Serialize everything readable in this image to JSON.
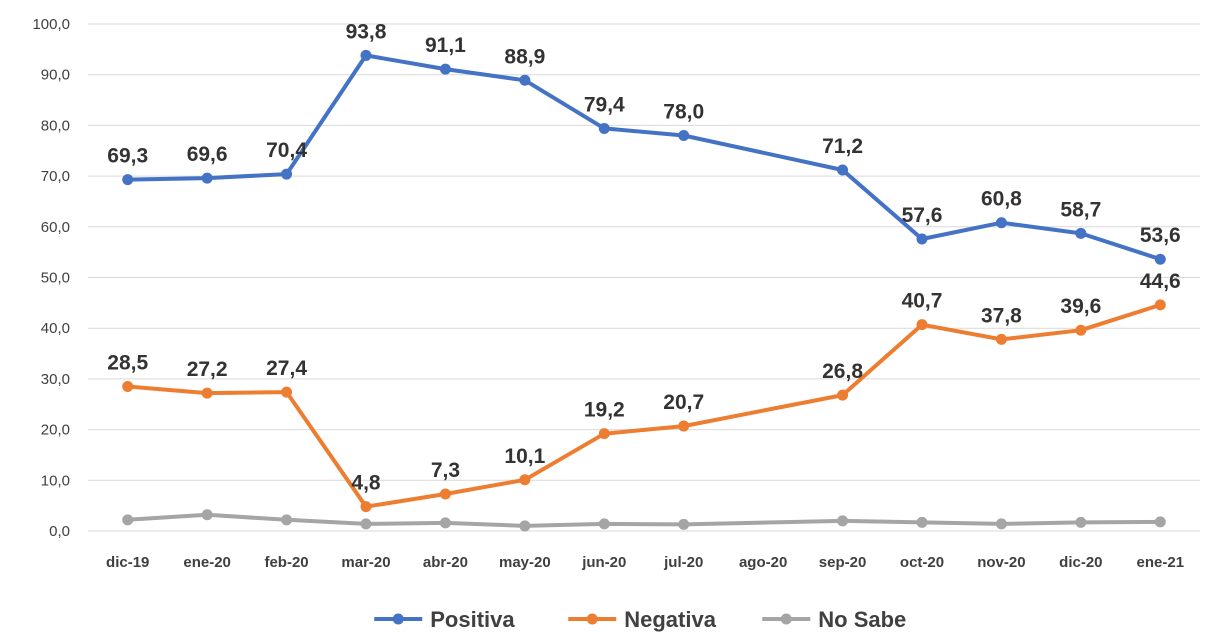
{
  "chart_data": {
    "type": "line",
    "categories": [
      "dic-19",
      "ene-20",
      "feb-20",
      "mar-20",
      "abr-20",
      "may-20",
      "jun-20",
      "jul-20",
      "ago-20",
      "sep-20",
      "oct-20",
      "nov-20",
      "dic-20",
      "ene-21"
    ],
    "ylim": [
      0,
      100
    ],
    "ytick_labels": [
      "0,0",
      "10,0",
      "20,0",
      "30,0",
      "40,0",
      "50,0",
      "60,0",
      "70,0",
      "80,0",
      "90,0",
      "100,0"
    ],
    "grid": true,
    "legend_position": "bottom",
    "series": [
      {
        "name": "Positiva",
        "color": "#4472c4",
        "values": [
          69.3,
          69.6,
          70.4,
          93.8,
          91.1,
          88.9,
          79.4,
          78.0,
          null,
          71.2,
          57.6,
          60.8,
          58.7,
          53.6
        ],
        "labels": [
          "69,3",
          "69,6",
          "70,4",
          "93,8",
          "91,1",
          "88,9",
          "79,4",
          "78,0",
          "",
          "71,2",
          "57,6",
          "60,8",
          "58,7",
          "53,6"
        ]
      },
      {
        "name": "Negativa",
        "color": "#ed7d31",
        "values": [
          28.5,
          27.2,
          27.4,
          4.8,
          7.3,
          10.1,
          19.2,
          20.7,
          null,
          26.8,
          40.7,
          37.8,
          39.6,
          44.6
        ],
        "labels": [
          "28,5",
          "27,2",
          "27,4",
          "4,8",
          "7,3",
          "10,1",
          "19,2",
          "20,7",
          "",
          "26,8",
          "40,7",
          "37,8",
          "39,6",
          "44,6"
        ]
      },
      {
        "name": "No Sabe",
        "color": "#a5a5a5",
        "values": [
          2.2,
          3.2,
          2.2,
          1.4,
          1.6,
          1.0,
          1.4,
          1.3,
          null,
          2.0,
          1.7,
          1.4,
          1.7,
          1.8
        ],
        "labels": []
      }
    ]
  }
}
